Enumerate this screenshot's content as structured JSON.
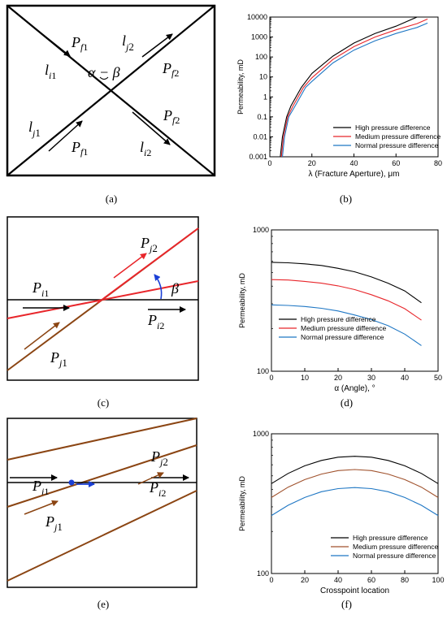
{
  "panels": {
    "a": {
      "caption": "(a)",
      "labels": {
        "pf1_top": "P",
        "pf1_top_sub": "f",
        "lj2_top": "l",
        "lj2_sub": "j",
        "li1": "l",
        "li1_sub": "i",
        "angle": "α − β",
        "pf2_right": "P",
        "pf2_right_sub": "f",
        "lj1": "l",
        "lj1_sub": "j",
        "pf2_lower": "P",
        "pf2_lower_sub": "f",
        "pf1_lower": "P",
        "pf1_lower_sub": "f",
        "li2": "l",
        "li2_sub": "i"
      }
    },
    "c": {
      "caption": "(c)",
      "labels": {
        "pj2": "P",
        "pj2_sub": "j",
        "beta": "β",
        "pi1": "P",
        "pi1_sub": "i",
        "pi2": "P",
        "pi2_sub": "i",
        "pj1": "P",
        "pj1_sub": "j"
      }
    },
    "e": {
      "caption": "(e)",
      "labels": {
        "pj2": "P",
        "pj2_sub": "j",
        "pi1": "P",
        "pi1_sub": "i",
        "pi2": "P",
        "pi2_sub": "i",
        "pj1": "P",
        "pj1_sub": "j"
      }
    }
  },
  "chart_data": [
    {
      "panel": "b",
      "caption": "(b)",
      "type": "line",
      "xlabel": "λ (Fracture Aperture), μm",
      "ylabel": "Permeability, mD",
      "xlim": [
        0,
        80
      ],
      "ylim": [
        0.001,
        10000
      ],
      "yscale": "log",
      "xticks": [
        "0",
        "20",
        "40",
        "60",
        "80"
      ],
      "yticks": [
        "0.001",
        "0.01",
        "0.1",
        "1",
        "10",
        "100",
        "1000",
        "10000"
      ],
      "legend_position": "lower-right",
      "series": [
        {
          "name": "High pressure difference",
          "color": "#000000",
          "x": [
            5,
            6,
            8,
            10,
            15,
            20,
            30,
            40,
            50,
            60,
            70
          ],
          "y": [
            0.001,
            0.01,
            0.1,
            0.35,
            3,
            15,
            110,
            500,
            1500,
            3500,
            10000
          ]
        },
        {
          "name": "Medium pressure difference",
          "color": "#e8262b",
          "x": [
            5.5,
            6.5,
            8.5,
            11,
            16,
            20,
            30,
            40,
            50,
            60,
            70,
            75
          ],
          "y": [
            0.001,
            0.01,
            0.1,
            0.35,
            3,
            9,
            75,
            330,
            1000,
            2300,
            4700,
            8000
          ]
        },
        {
          "name": "Normal pressure difference",
          "color": "#1f77c4",
          "x": [
            6,
            7,
            9,
            12,
            17,
            20,
            30,
            40,
            50,
            60,
            70,
            75
          ],
          "y": [
            0.001,
            0.01,
            0.1,
            0.35,
            3,
            6,
            50,
            220,
            650,
            1500,
            3000,
            5000
          ]
        }
      ]
    },
    {
      "panel": "d",
      "caption": "(d)",
      "type": "line",
      "xlabel": "α (Angle), °",
      "ylabel": "Permeability, mD",
      "xlim": [
        0,
        50
      ],
      "ylim": [
        100,
        1000
      ],
      "yscale": "log",
      "xticks": [
        "0",
        "10",
        "20",
        "30",
        "40",
        "50"
      ],
      "yticks": [
        "100",
        "1000"
      ],
      "legend_position": "lower-left",
      "series": [
        {
          "name": "High pressure difference",
          "color": "#000000",
          "x": [
            0,
            5,
            10,
            15,
            20,
            25,
            30,
            35,
            40,
            45
          ],
          "y": [
            590,
            585,
            575,
            560,
            535,
            505,
            465,
            420,
            370,
            305
          ]
        },
        {
          "name": "Medium pressure difference",
          "color": "#e8262b",
          "x": [
            0,
            5,
            10,
            15,
            20,
            25,
            30,
            35,
            40,
            45
          ],
          "y": [
            445,
            442,
            432,
            420,
            402,
            378,
            348,
            315,
            277,
            230
          ]
        },
        {
          "name": "Normal pressure difference",
          "color": "#1f77c4",
          "x": [
            0,
            5,
            10,
            15,
            20,
            25,
            30,
            35,
            40,
            45
          ],
          "y": [
            295,
            292,
            287,
            279,
            267,
            250,
            232,
            210,
            183,
            152
          ]
        }
      ]
    },
    {
      "panel": "f",
      "caption": "(f)",
      "type": "line",
      "xlabel": "Crosspoint location",
      "ylabel": "Permeability, mD",
      "xlim": [
        0,
        100
      ],
      "ylim": [
        100,
        1000
      ],
      "yscale": "log",
      "xticks": [
        "0",
        "20",
        "40",
        "60",
        "80",
        "100"
      ],
      "yticks": [
        "100",
        "1000"
      ],
      "legend_position": "lower-right",
      "series": [
        {
          "name": "High pressure difference",
          "color": "#000000",
          "x": [
            0,
            10,
            20,
            30,
            40,
            50,
            60,
            70,
            80,
            90,
            100
          ],
          "y": [
            440,
            520,
            590,
            645,
            680,
            690,
            680,
            645,
            590,
            520,
            440
          ]
        },
        {
          "name": "Medium pressure difference",
          "color": "#a0522d",
          "x": [
            0,
            10,
            20,
            30,
            40,
            50,
            60,
            70,
            80,
            90,
            100
          ],
          "y": [
            350,
            415,
            470,
            515,
            545,
            555,
            545,
            515,
            470,
            415,
            350
          ]
        },
        {
          "name": "Normal pressure difference",
          "color": "#1f77c4",
          "x": [
            0,
            10,
            20,
            30,
            40,
            50,
            60,
            70,
            80,
            90,
            100
          ],
          "y": [
            260,
            308,
            350,
            385,
            405,
            412,
            405,
            385,
            350,
            308,
            260
          ]
        }
      ]
    }
  ]
}
